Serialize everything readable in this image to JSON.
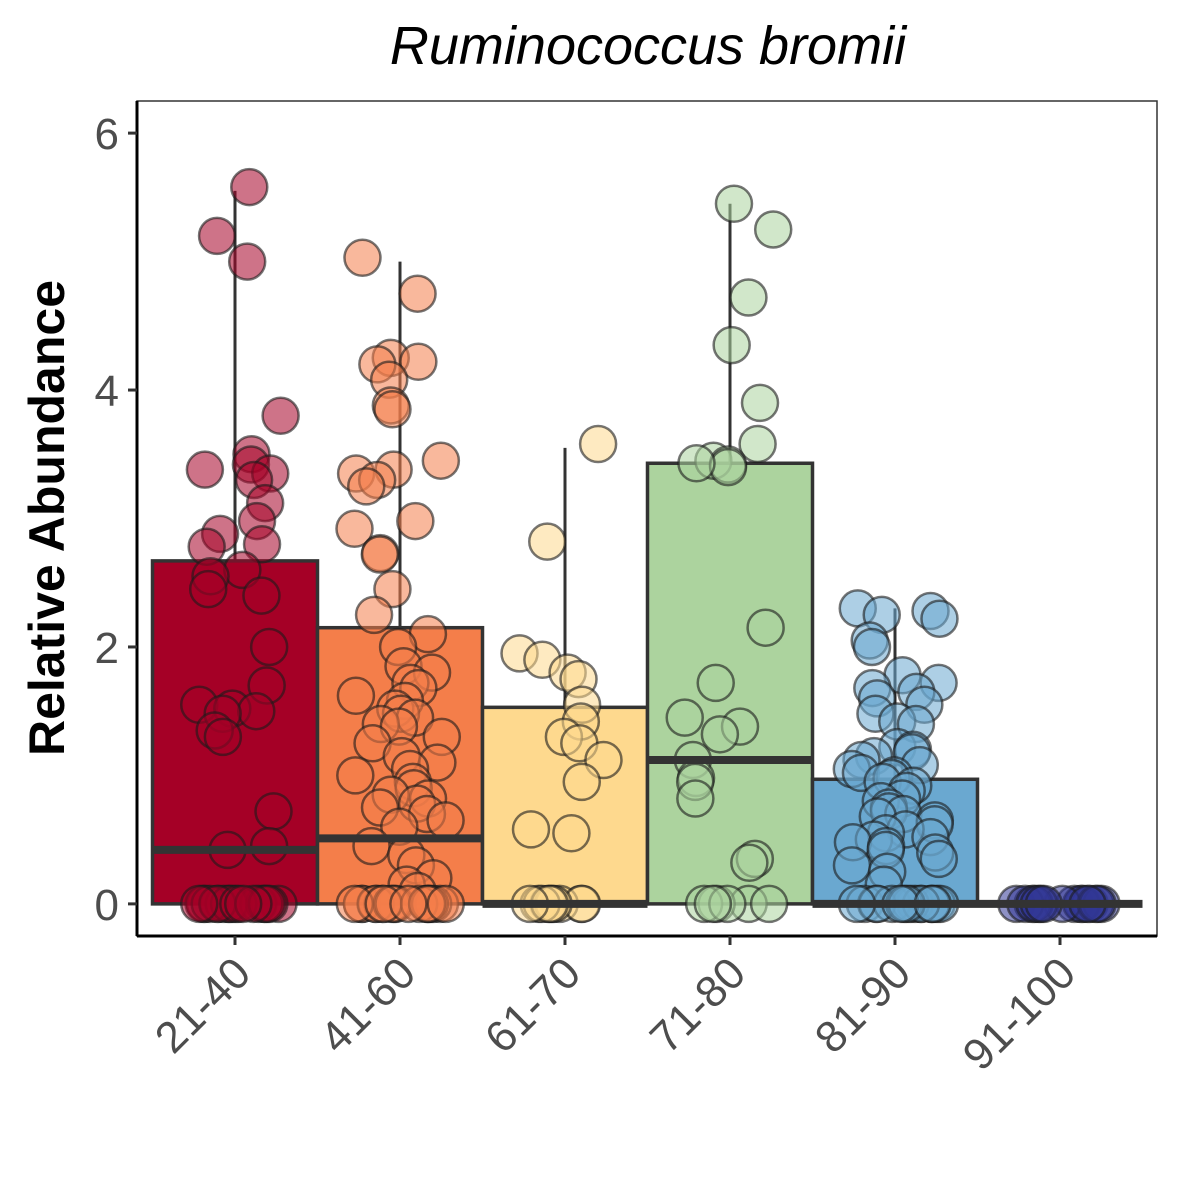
{
  "chart_data": {
    "type": "bar",
    "title": "Ruminococcus bromii",
    "xlabel": "",
    "ylabel": "Relative Abundance",
    "categories": [
      "21-40",
      "41-60",
      "61-70",
      "71-80",
      "81-90",
      "91-100"
    ],
    "y_ticks": [
      "0",
      "2",
      "4",
      "6"
    ],
    "ylim": [
      -0.25,
      6.25
    ],
    "grid": false,
    "legend": "none",
    "series": [
      {
        "values": [
          2.67,
          2.15,
          1.53,
          3.43,
          0.97,
          0.0
        ],
        "medians": [
          0.42,
          0.51,
          0.0,
          1.12,
          0.0,
          0.0
        ],
        "whisker_max": [
          5.55,
          5.0,
          3.55,
          5.45,
          2.3,
          0.0
        ],
        "colors": [
          "#a50026",
          "#f47e4a",
          "#fed98e",
          "#acd39e",
          "#6aa8d0",
          "#313695"
        ]
      }
    ],
    "points": [
      [
        5.58,
        5.2,
        5.0,
        3.8,
        3.5,
        3.42,
        3.38,
        3.35,
        3.3,
        3.12,
        2.98,
        2.88,
        2.8,
        2.78,
        2.6,
        2.55,
        2.45,
        2.4,
        2.0,
        1.7,
        1.55,
        1.52,
        1.5,
        1.48,
        1.35,
        1.3,
        0.72,
        0.45,
        0.42,
        0.0,
        0.0,
        0.0,
        0.0,
        0.0,
        0.0,
        0.0,
        0.0,
        0.0,
        0.0,
        0.0,
        0.0,
        0.0,
        0.0,
        0.0,
        0.0,
        0.0,
        0.0,
        0.0,
        0.0
      ],
      [
        5.03,
        4.75,
        4.25,
        4.22,
        4.2,
        4.08,
        3.88,
        3.85,
        3.45,
        3.38,
        3.35,
        3.3,
        3.25,
        2.98,
        2.92,
        2.73,
        2.72,
        2.45,
        2.25,
        2.1,
        2.0,
        1.85,
        1.8,
        1.72,
        1.68,
        1.62,
        1.58,
        1.52,
        1.48,
        1.45,
        1.4,
        1.38,
        1.3,
        1.25,
        1.15,
        1.1,
        1.05,
        1.0,
        0.95,
        0.9,
        0.85,
        0.82,
        0.78,
        0.75,
        0.7,
        0.65,
        0.6,
        0.45,
        0.38,
        0.3,
        0.2,
        0.15,
        0.1,
        0.0,
        0.0,
        0.0,
        0.0,
        0.0,
        0.0,
        0.0,
        0.0,
        0.0,
        0.0,
        0.0,
        0.0,
        0.0,
        0.0,
        0.0,
        0.0,
        0.0,
        0.0,
        0.0
      ],
      [
        3.58,
        2.82,
        1.95,
        1.9,
        1.8,
        1.75,
        1.55,
        1.42,
        1.3,
        1.25,
        1.12,
        0.95,
        0.58,
        0.55,
        0.0,
        0.0,
        0.0,
        0.0,
        0.0,
        0.0,
        0.0,
        0.0,
        0.0,
        0.0
      ],
      [
        5.45,
        5.25,
        4.72,
        4.35,
        3.9,
        3.58,
        3.45,
        3.42,
        3.4,
        3.43,
        2.15,
        1.72,
        1.45,
        1.38,
        1.32,
        1.12,
        0.98,
        0.95,
        0.82,
        0.35,
        0.32,
        0.0,
        0.0,
        0.0,
        0.0,
        0.0,
        0.0
      ],
      [
        2.3,
        2.28,
        2.25,
        2.22,
        2.05,
        2.0,
        1.78,
        1.72,
        1.68,
        1.65,
        1.6,
        1.55,
        1.48,
        1.42,
        1.4,
        1.22,
        1.2,
        1.18,
        1.15,
        1.12,
        1.08,
        1.05,
        1.02,
        1.0,
        0.98,
        0.95,
        0.92,
        0.88,
        0.82,
        0.8,
        0.75,
        0.72,
        0.7,
        0.68,
        0.65,
        0.62,
        0.58,
        0.55,
        0.52,
        0.5,
        0.48,
        0.45,
        0.42,
        0.4,
        0.35,
        0.3,
        0.25,
        0.15,
        0.0,
        0.0,
        0.0,
        0.0,
        0.0,
        0.0,
        0.0,
        0.0,
        0.0,
        0.0,
        0.0,
        0.0,
        0.0,
        0.0,
        0.0,
        0.0,
        0.0
      ],
      [
        0.0,
        0.0,
        0.0,
        0.0,
        0.0,
        0.0,
        0.0,
        0.0,
        0.0,
        0.0,
        0.0,
        0.0,
        0.0,
        0.0,
        0.0,
        0.0
      ]
    ]
  }
}
